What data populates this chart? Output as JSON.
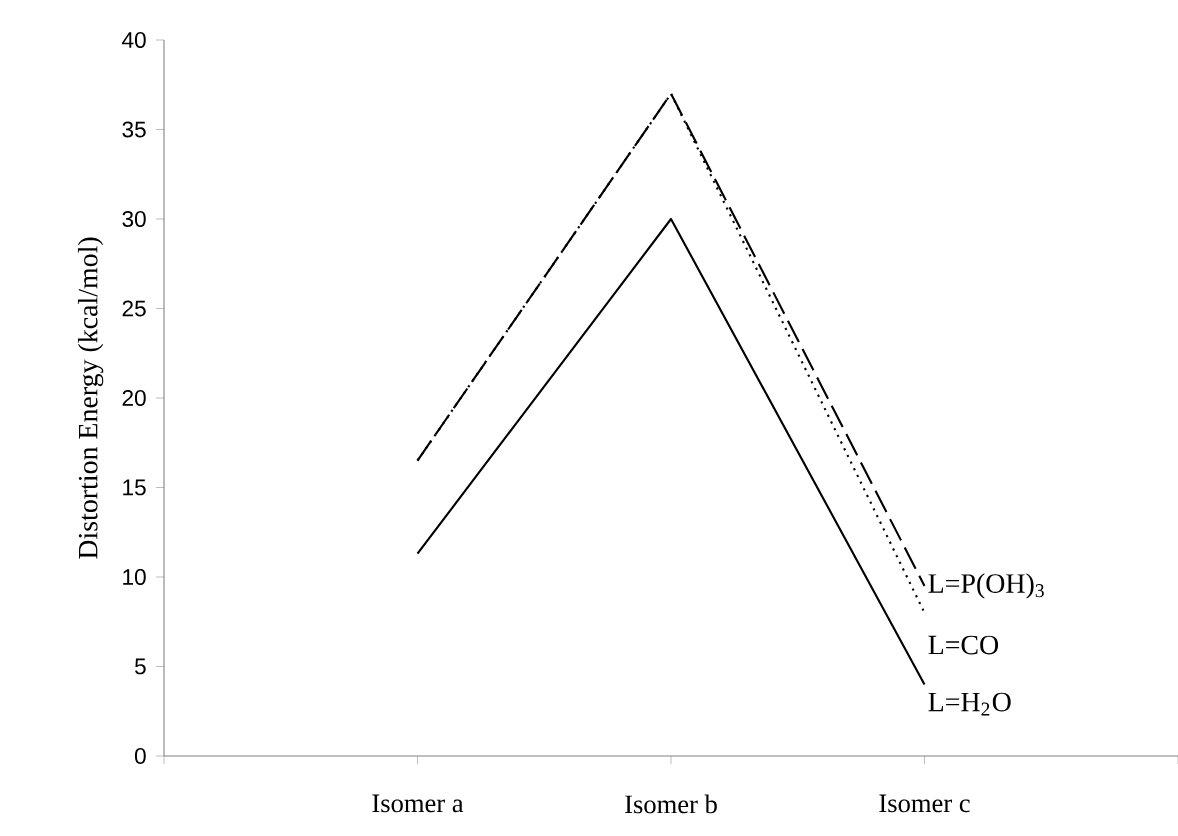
{
  "chart_data": {
    "type": "line",
    "ylabel": "Distortion Energy (kcal/mol)",
    "categories": [
      null,
      "Isomer a",
      "Isomer b",
      "Isomer c",
      null
    ],
    "ylim": [
      0,
      40
    ],
    "yticks": [
      0,
      5,
      10,
      15,
      20,
      25,
      30,
      35,
      40
    ],
    "series": [
      {
        "name": "L=P(OH)$_{3}$",
        "color": "#000000",
        "line_style": "dashed",
        "values": [
          null,
          16.5,
          37,
          9.5,
          null
        ]
      },
      {
        "name": "L=CO",
        "color": "#000000",
        "line_style": "dotted",
        "values": [
          null,
          16.5,
          37,
          8,
          null
        ]
      },
      {
        "name": "L=H$_{2}$O",
        "color": "#000000",
        "line_style": "solid",
        "values": [
          null,
          11.3,
          30,
          4,
          null
        ]
      }
    ],
    "grid": false,
    "marker": "none"
  }
}
